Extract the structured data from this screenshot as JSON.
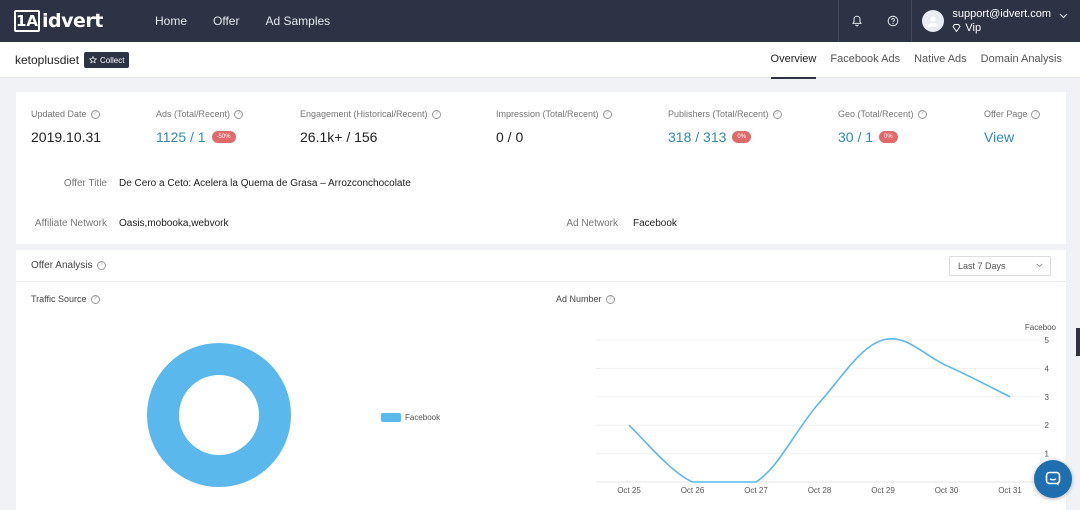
{
  "nav": {
    "logo_mark": "1A",
    "logo_text": "idvert",
    "links": [
      "Home",
      "Offer",
      "Ad Samples"
    ],
    "icons": [
      "bell-icon",
      "help-icon"
    ],
    "user": {
      "email": "support@idvert.com",
      "level": "Vip"
    }
  },
  "offer": {
    "name": "ketoplusdiet",
    "collect_label": "Collect",
    "tabs": [
      "Overview",
      "Facebook Ads",
      "Native Ads",
      "Domain Analysis"
    ],
    "active_tab": "Overview"
  },
  "stats": [
    {
      "label": "Updated Date",
      "value": "2019.10.31"
    },
    {
      "label": "Ads (Total/Recent)",
      "value": "1125 / 1",
      "badge": "-50%",
      "link": true
    },
    {
      "label": "Engagement (Historical/Recent)",
      "value": "26.1k+ / 156"
    },
    {
      "label": "Impression (Total/Recent)",
      "value": "0 / 0"
    },
    {
      "label": "Publishers (Total/Recent)",
      "value": "318 / 313",
      "badge": "0%",
      "link": true
    },
    {
      "label": "Geo (Total/Recent)",
      "value": "30 / 1",
      "badge": "0%",
      "link": true
    },
    {
      "label": "Offer Page",
      "value": "View",
      "link": true
    }
  ],
  "details": {
    "offer_title_label": "Offer Title",
    "offer_title": "De Cero a Ceto: Acelera la Quema de Grasa – Arrozconchocolate",
    "affiliate_label": "Affiliate Network",
    "affiliate": "Oasis,mobooka,webvork",
    "ad_network_label": "Ad Network",
    "ad_network": "Facebook"
  },
  "analysis": {
    "title": "Offer Analysis",
    "range": "Last 7 Days",
    "traffic_label": "Traffic Source",
    "ad_number_label": "Ad Number"
  },
  "chart_data": [
    {
      "type": "pie",
      "title": "Traffic Source",
      "categories": [
        "Facebook"
      ],
      "values": [
        100
      ],
      "colors": [
        "#5bb8ec"
      ],
      "legend": "right"
    },
    {
      "type": "line",
      "title": "Ad Number",
      "x": [
        "Oct 25",
        "Oct 26",
        "Oct 27",
        "Oct 28",
        "Oct 29",
        "Oct 30",
        "Oct 31"
      ],
      "series": [
        {
          "name": "Facebook",
          "values": [
            2,
            0,
            0,
            2.8,
            5,
            4.1,
            3
          ],
          "color": "#5bb8ec"
        }
      ],
      "ylim": [
        0,
        5
      ],
      "yticks": [
        1,
        2,
        3,
        4,
        5
      ],
      "y_axis_side": "right",
      "grid": true
    }
  ]
}
